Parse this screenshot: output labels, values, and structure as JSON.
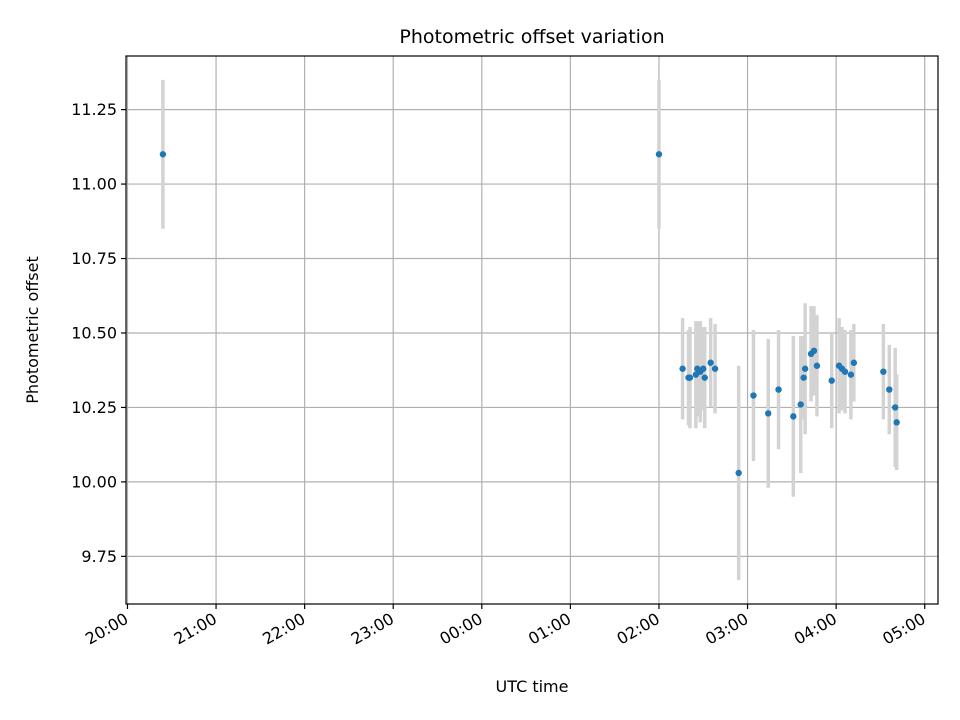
{
  "chart_data": {
    "type": "scatter",
    "title": "Photometric offset variation",
    "xlabel": "UTC time",
    "ylabel": "Photometric offset",
    "x_tick_labels": [
      "20:00",
      "21:00",
      "22:00",
      "23:00",
      "00:00",
      "01:00",
      "02:00",
      "03:00",
      "04:00",
      "05:00"
    ],
    "y_ticks": [
      9.75,
      10.0,
      10.25,
      10.5,
      10.75,
      11.0,
      11.25
    ],
    "y_tick_labels": [
      "9.75",
      "10.00",
      "10.25",
      "10.50",
      "10.75",
      "11.00",
      "11.25"
    ],
    "ylim": [
      9.59,
      11.43
    ],
    "xlim": [
      "19:59",
      "05:09"
    ],
    "grid": true,
    "colors": {
      "marker": "#1f77b4",
      "errorbar": "#d3d3d3",
      "grid": "#b0b0b0"
    },
    "series": [
      {
        "points": [
          {
            "time": "20:24",
            "y": 11.1,
            "err": 0.25
          },
          {
            "time": "02:00",
            "y": 11.1,
            "err": 0.25
          },
          {
            "time": "02:16",
            "y": 10.38,
            "err": 0.17
          },
          {
            "time": "02:20",
            "y": 10.35,
            "err": 0.16
          },
          {
            "time": "02:21",
            "y": 10.35,
            "err": 0.17
          },
          {
            "time": "02:25",
            "y": 10.36,
            "err": 0.18
          },
          {
            "time": "02:26",
            "y": 10.38,
            "err": 0.16
          },
          {
            "time": "02:28",
            "y": 10.37,
            "err": 0.17
          },
          {
            "time": "02:30",
            "y": 10.38,
            "err": 0.14
          },
          {
            "time": "02:31",
            "y": 10.35,
            "err": 0.17
          },
          {
            "time": "02:35",
            "y": 10.4,
            "err": 0.15
          },
          {
            "time": "02:38",
            "y": 10.38,
            "err": 0.15
          },
          {
            "time": "02:54",
            "y": 10.03,
            "err": 0.36
          },
          {
            "time": "03:04",
            "y": 10.29,
            "err": 0.22
          },
          {
            "time": "03:14",
            "y": 10.23,
            "err": 0.25
          },
          {
            "time": "03:21",
            "y": 10.31,
            "err": 0.2
          },
          {
            "time": "03:31",
            "y": 10.22,
            "err": 0.27
          },
          {
            "time": "03:36",
            "y": 10.26,
            "err": 0.23
          },
          {
            "time": "03:38",
            "y": 10.35,
            "err": 0.14
          },
          {
            "time": "03:39",
            "y": 10.38,
            "err": 0.22
          },
          {
            "time": "03:43",
            "y": 10.43,
            "err": 0.16
          },
          {
            "time": "03:45",
            "y": 10.44,
            "err": 0.15
          },
          {
            "time": "03:47",
            "y": 10.39,
            "err": 0.17
          },
          {
            "time": "03:57",
            "y": 10.34,
            "err": 0.16
          },
          {
            "time": "04:02",
            "y": 10.39,
            "err": 0.16
          },
          {
            "time": "04:04",
            "y": 10.38,
            "err": 0.14
          },
          {
            "time": "04:06",
            "y": 10.37,
            "err": 0.14
          },
          {
            "time": "04:10",
            "y": 10.36,
            "err": 0.15
          },
          {
            "time": "04:12",
            "y": 10.4,
            "err": 0.13
          },
          {
            "time": "04:32",
            "y": 10.37,
            "err": 0.16
          },
          {
            "time": "04:36",
            "y": 10.31,
            "err": 0.15
          },
          {
            "time": "04:40",
            "y": 10.25,
            "err": 0.2
          },
          {
            "time": "04:41",
            "y": 10.2,
            "err": 0.16
          }
        ]
      }
    ]
  }
}
